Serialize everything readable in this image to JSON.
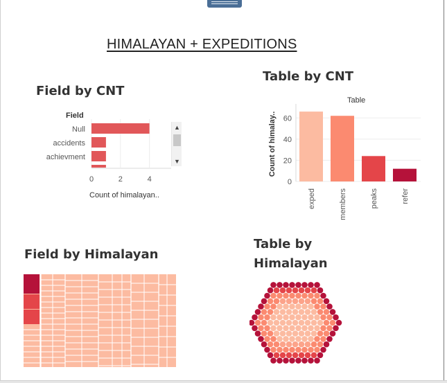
{
  "dashboard": {
    "title": "HIMALAYAN + EXPEDITIONS"
  },
  "sheets": {
    "field_by_cnt": {
      "title": "Field by CNT",
      "row_header": "Field",
      "x_axis_label": "Count of himalayan..",
      "x_ticks": [
        "0",
        "2",
        "4"
      ]
    },
    "table_by_cnt": {
      "title": "Table by CNT",
      "column_header": "Table",
      "y_axis_label": "Count of himalay..",
      "y_ticks": [
        "0",
        "20",
        "40",
        "60"
      ]
    },
    "field_by_himalayan": {
      "title": "Field by Himalayan"
    },
    "table_by_himalayan": {
      "title": "Table by Himalayan"
    }
  },
  "colors": {
    "light": "#fcbba1",
    "mid": "#fb8a70",
    "red": "#e44549",
    "dark": "#b5123a",
    "bar_field": "#e15759",
    "accent_grip": "#4a6e96"
  },
  "icons": {
    "scroll_up": "▲",
    "scroll_down": "▼"
  },
  "chart_data": [
    {
      "type": "bar",
      "orientation": "horizontal",
      "title": "Field by CNT",
      "categories": [
        "Null",
        "accidents",
        "achievment"
      ],
      "values": [
        4,
        1,
        1
      ],
      "xlabel": "Count of himalayan..",
      "ylabel": "Field",
      "xlim": [
        0,
        5.5
      ],
      "grid": true
    },
    {
      "type": "bar",
      "title": "Table by CNT",
      "categories": [
        "exped",
        "members",
        "peaks",
        "refer"
      ],
      "values": [
        66,
        62,
        24,
        12
      ],
      "colors": [
        "#fcbba1",
        "#fb8a70",
        "#e44549",
        "#b5123a"
      ],
      "xlabel": "Table",
      "ylabel": "Count of himalay..",
      "ylim": [
        0,
        70
      ],
      "grid": true
    }
  ]
}
